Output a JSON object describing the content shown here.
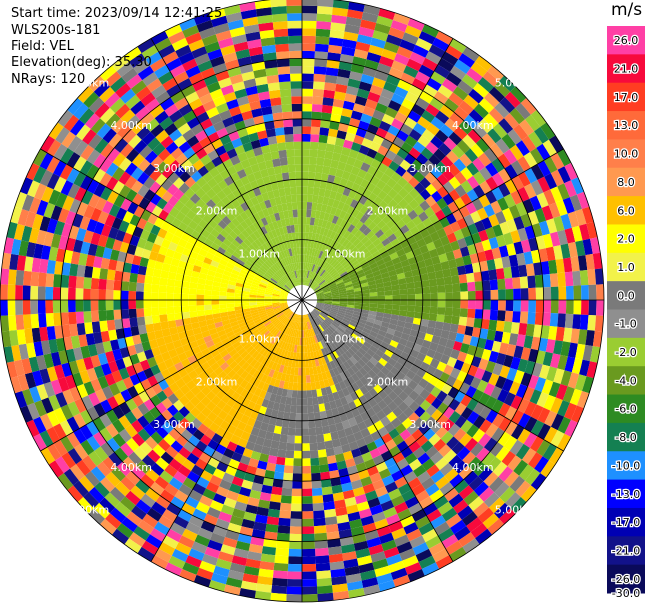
{
  "header": {
    "start_time": "Start time: 2023/09/14 12:41:25",
    "instrument": "WLS200s-181",
    "field": "Field: VEL",
    "elevation": "Elevation(deg): 35.30",
    "nrays": "NRays: 120"
  },
  "colorbar": {
    "unit": "m/s",
    "ticks": [
      "26.0",
      "21.0",
      "17.0",
      "13.0",
      "10.0",
      "8.0",
      "6.0",
      "2.0",
      "1.0",
      "0.0",
      "-1.0",
      "-2.0",
      "-4.0",
      "-6.0",
      "-8.0",
      "-10.0",
      "-13.0",
      "-17.0",
      "-21.0",
      "-26.0",
      "-30.0"
    ],
    "colors": [
      "#ff3fa5",
      "#f70a3c",
      "#ff3d22",
      "#ff6a3a",
      "#ff7f4a",
      "#ff9950",
      "#ffc000",
      "#ffff00",
      "#f2f24a",
      "#7a7a7a",
      "#8f8f8f",
      "#9acd32",
      "#6a9a1f",
      "#2e8b22",
      "#148052",
      "#1e90ff",
      "#0000ff",
      "#0000b4",
      "#12128a",
      "#0a0a5a"
    ]
  },
  "chart_data": {
    "type": "ppi-scan",
    "field": "VEL",
    "units": "m/s",
    "nrays": 120,
    "elevation_deg": 35.3,
    "range_rings_km": [
      1.0,
      2.0,
      3.0,
      4.0,
      5.0
    ],
    "range_ring_labels": [
      "1.00km",
      "2.00km",
      "3.00km",
      "4.00km",
      "5.00km"
    ],
    "azimuth_spokes_deg": [
      0,
      30,
      60,
      90,
      120,
      150,
      180,
      210,
      240,
      270,
      300,
      330
    ],
    "color_range": [
      -30.0,
      26.0
    ],
    "sector_summary": [
      {
        "azimuth_from": 300,
        "azimuth_to": 60,
        "range_km": [
          0.3,
          2.6
        ],
        "velocity": -2.0
      },
      {
        "azimuth_from": 60,
        "azimuth_to": 100,
        "range_km": [
          0.3,
          2.6
        ],
        "velocity": -4.0
      },
      {
        "azimuth_from": 100,
        "azimuth_to": 200,
        "range_km": [
          0.3,
          2.6
        ],
        "velocity": 0.0
      },
      {
        "azimuth_from": 160,
        "azimuth_to": 200,
        "range_km": [
          0.3,
          1.5
        ],
        "velocity": 6.0
      },
      {
        "azimuth_from": 200,
        "azimuth_to": 260,
        "range_km": [
          0.3,
          2.6
        ],
        "velocity": 6.0
      },
      {
        "azimuth_from": 260,
        "azimuth_to": 300,
        "range_km": [
          0.3,
          2.6
        ],
        "velocity": 2.0
      },
      {
        "azimuth_from": 0,
        "azimuth_to": 360,
        "range_km": [
          2.6,
          5.0
        ],
        "velocity": "noise"
      }
    ]
  }
}
